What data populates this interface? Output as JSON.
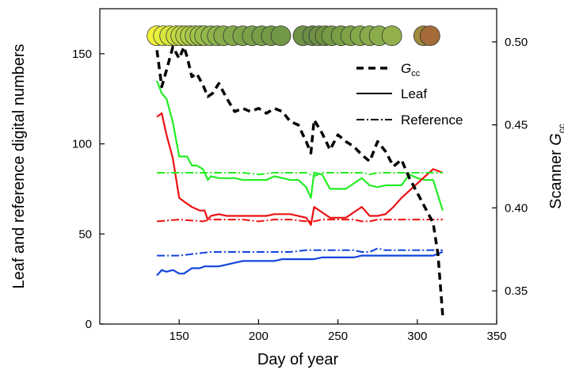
{
  "chart_data": {
    "type": "line",
    "xlabel": "Day of year",
    "ylabel_left": "Leaf and reference digital numbers",
    "ylabel_right_main": "Scanner ",
    "ylabel_right_italic": "G",
    "ylabel_right_sub": "cc",
    "xlim": [
      100,
      350
    ],
    "ylim_left": [
      0,
      175
    ],
    "ylim_right": [
      0.33,
      0.52
    ],
    "xticks": [
      "150",
      "200",
      "250",
      "300",
      "350"
    ],
    "yticks_left": [
      "0",
      "50",
      "100",
      "150"
    ],
    "yticks_right": [
      "0.35",
      "0.40",
      "0.45",
      "0.50"
    ],
    "legend": {
      "gcc_italic": "G",
      "gcc_sub": "cc",
      "leaf": "Leaf",
      "reference": "Reference"
    },
    "colors": {
      "green": "#22ee22",
      "red": "#ee1111",
      "blue": "#1144dd",
      "gcc": "#000000"
    },
    "series": [
      {
        "color": "green",
        "style": "leaf",
        "axis": "left",
        "x": [
          136,
          139,
          142,
          146,
          150,
          153,
          155,
          158,
          161,
          165,
          168,
          170,
          175,
          180,
          185,
          190,
          195,
          200,
          205,
          210,
          215,
          220,
          225,
          230,
          233,
          235,
          240,
          245,
          250,
          255,
          260,
          265,
          270,
          275,
          280,
          285,
          290,
          295,
          300,
          305,
          310,
          316
        ],
        "y": [
          135,
          128,
          125,
          112,
          93,
          93,
          93,
          88,
          88,
          86,
          80,
          82,
          81,
          81,
          81,
          80,
          80,
          80,
          80,
          82,
          81,
          80,
          80,
          76,
          70,
          84,
          83,
          75,
          75,
          75,
          78,
          81,
          77,
          76,
          77,
          77,
          77,
          83,
          81,
          80,
          80,
          63
        ]
      },
      {
        "color": "red",
        "style": "leaf",
        "axis": "left",
        "x": [
          136,
          139,
          142,
          146,
          150,
          153,
          158,
          163,
          166,
          168,
          170,
          175,
          180,
          190,
          200,
          205,
          210,
          220,
          230,
          233,
          235,
          240,
          245,
          250,
          255,
          260,
          265,
          270,
          275,
          280,
          285,
          290,
          295,
          300,
          305,
          310,
          316
        ],
        "y": [
          115,
          117,
          105,
          92,
          70,
          68,
          65,
          63,
          63,
          58,
          60,
          61,
          60,
          60,
          60,
          60,
          61,
          61,
          59,
          55,
          65,
          62,
          59,
          59,
          59,
          62,
          65,
          60,
          60,
          61,
          65,
          70,
          74,
          78,
          82,
          86,
          84
        ]
      },
      {
        "color": "blue",
        "style": "leaf",
        "axis": "left",
        "x": [
          136,
          139,
          142,
          146,
          150,
          153,
          158,
          163,
          166,
          170,
          175,
          180,
          185,
          190,
          200,
          205,
          210,
          215,
          220,
          225,
          230,
          235,
          240,
          245,
          250,
          255,
          260,
          265,
          270,
          275,
          280,
          285,
          290,
          295,
          300,
          305,
          310,
          316
        ],
        "y": [
          27,
          30,
          29,
          30,
          28,
          28,
          31,
          31,
          32,
          32,
          32,
          33,
          34,
          35,
          35,
          35,
          35,
          36,
          36,
          36,
          36,
          36,
          37,
          37,
          37,
          37,
          37,
          38,
          38,
          38,
          38,
          38,
          38,
          38,
          38,
          38,
          38,
          40
        ]
      },
      {
        "color": "green",
        "style": "reference",
        "axis": "left",
        "x": [
          136,
          150,
          165,
          170,
          180,
          190,
          200,
          210,
          220,
          230,
          235,
          240,
          250,
          260,
          265,
          270,
          275,
          285,
          300,
          316
        ],
        "y": [
          84,
          84,
          84,
          84,
          84,
          84,
          83,
          84,
          84,
          84,
          82,
          84,
          84,
          84,
          84,
          83,
          84,
          84,
          84,
          84
        ]
      },
      {
        "color": "red",
        "style": "reference",
        "axis": "left",
        "x": [
          136,
          150,
          165,
          170,
          180,
          190,
          200,
          210,
          220,
          230,
          235,
          240,
          250,
          260,
          265,
          270,
          275,
          285,
          300,
          316
        ],
        "y": [
          57,
          58,
          57,
          58,
          58,
          58,
          57,
          58,
          58,
          57,
          57,
          58,
          58,
          58,
          57,
          57,
          58,
          58,
          58,
          58
        ]
      },
      {
        "color": "blue",
        "style": "reference",
        "axis": "left",
        "x": [
          136,
          150,
          160,
          170,
          180,
          190,
          200,
          210,
          220,
          230,
          240,
          250,
          260,
          265,
          270,
          275,
          280,
          290,
          300,
          316
        ],
        "y": [
          38,
          38,
          39,
          40,
          40,
          40,
          40,
          40,
          40,
          41,
          41,
          41,
          41,
          40,
          40,
          42,
          41,
          41,
          41,
          41
        ]
      },
      {
        "color": "gcc",
        "style": "gcc",
        "axis": "right",
        "x": [
          136,
          139,
          142,
          146,
          150,
          153,
          155,
          158,
          161,
          165,
          168,
          171,
          175,
          180,
          185,
          190,
          195,
          200,
          205,
          210,
          215,
          220,
          225,
          230,
          233,
          235,
          240,
          245,
          250,
          255,
          260,
          265,
          270,
          275,
          280,
          285,
          290,
          295,
          300,
          305,
          310,
          313,
          316
        ],
        "y": [
          0.495,
          0.473,
          0.483,
          0.497,
          0.49,
          0.497,
          0.491,
          0.479,
          0.481,
          0.474,
          0.467,
          0.469,
          0.475,
          0.466,
          0.458,
          0.46,
          0.458,
          0.46,
          0.457,
          0.46,
          0.458,
          0.452,
          0.45,
          0.44,
          0.433,
          0.453,
          0.445,
          0.435,
          0.444,
          0.44,
          0.437,
          0.432,
          0.428,
          0.44,
          0.434,
          0.425,
          0.429,
          0.418,
          0.409,
          0.4,
          0.391,
          0.372,
          0.335
        ]
      }
    ],
    "circles": {
      "y_value": 160,
      "x": [
        136,
        140,
        144,
        148,
        151,
        154,
        157,
        160,
        163,
        166,
        170,
        174,
        178,
        184,
        190,
        196,
        202,
        208,
        214,
        228,
        234,
        238,
        242,
        246,
        252,
        258,
        264,
        270,
        276,
        284,
        304,
        308
      ],
      "colors": [
        "#f2f23a",
        "#e4ef3c",
        "#d8e63e",
        "#cfe23f",
        "#c2da42",
        "#b9d343",
        "#b0ce46",
        "#a8c848",
        "#a1c348",
        "#9abe4a",
        "#93b84c",
        "#8db34b",
        "#88ad4a",
        "#83a84a",
        "#7ea449",
        "#7aa048",
        "#779d47",
        "#749a47",
        "#719846",
        "#6f9246",
        "#6b8c45",
        "#6e8f45",
        "#70923f",
        "#779a45",
        "#7a9e45",
        "#7ea245",
        "#84a848",
        "#88aa4a",
        "#8aac4b",
        "#92b04c",
        "#a08a3c",
        "#a46a38"
      ]
    }
  }
}
